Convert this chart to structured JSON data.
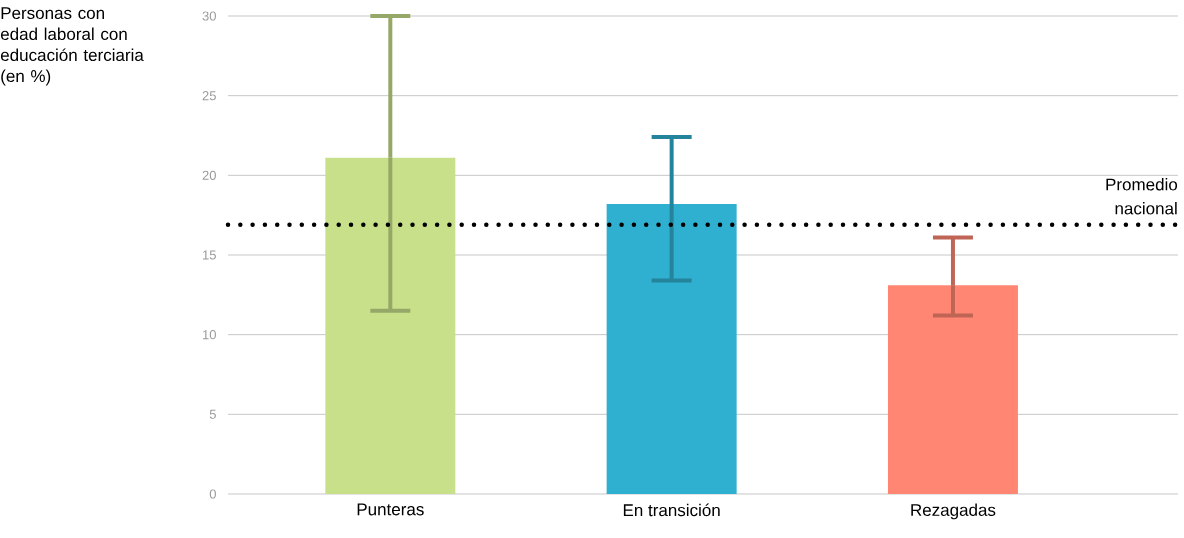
{
  "chart_data": {
    "type": "bar",
    "ylabel": "Personas con edad laboral con educación terciaria (en %)",
    "categories": [
      "Punteras",
      "En transición",
      "Rezagadas"
    ],
    "values": [
      21.1,
      18.2,
      13.1
    ],
    "colors": [
      "#c8e08a",
      "#2fb0d0",
      "#ff8672"
    ],
    "errors": [
      [
        11.5,
        30
      ],
      [
        13.4,
        22.4
      ],
      [
        11.2,
        16.1
      ]
    ],
    "ylim": [
      0,
      30
    ],
    "yticks": [
      0,
      5,
      10,
      15,
      20,
      25,
      30
    ],
    "grid": "y",
    "ref_lines": [
      {
        "axis": "y",
        "value": 16.9,
        "label": "Promedio nacional",
        "color": "#000000",
        "line_style": "dotted"
      }
    ]
  }
}
